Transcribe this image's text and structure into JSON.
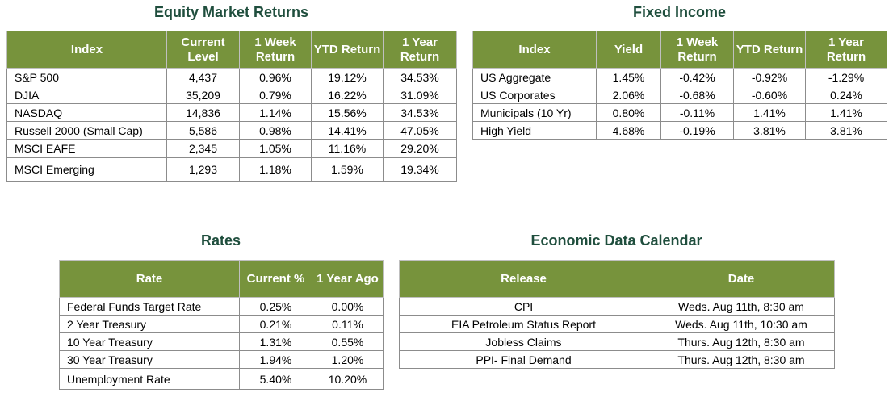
{
  "equity": {
    "title": "Equity Market Returns",
    "headers": [
      "Index",
      "Current Level",
      "1 Week Return",
      "YTD Return",
      "1 Year Return"
    ],
    "rows": [
      [
        "S&P 500",
        "4,437",
        "0.96%",
        "19.12%",
        "34.53%"
      ],
      [
        "DJIA",
        "35,209",
        "0.79%",
        "16.22%",
        "31.09%"
      ],
      [
        "NASDAQ",
        "14,836",
        "1.14%",
        "15.56%",
        "34.53%"
      ],
      [
        "Russell 2000 (Small Cap)",
        "5,586",
        "0.98%",
        "14.41%",
        "47.05%"
      ],
      [
        "MSCI EAFE",
        "2,345",
        "1.05%",
        "11.16%",
        "29.20%"
      ],
      [
        "MSCI Emerging",
        "1,293",
        "1.18%",
        "1.59%",
        "19.34%"
      ]
    ]
  },
  "fixed_income": {
    "title": "Fixed Income",
    "headers": [
      "Index",
      "Yield",
      "1 Week Return",
      "YTD Return",
      "1 Year Return"
    ],
    "rows": [
      [
        "US Aggregate",
        "1.45%",
        "-0.42%",
        "-0.92%",
        "-1.29%"
      ],
      [
        "US Corporates",
        "2.06%",
        "-0.68%",
        "-0.60%",
        "0.24%"
      ],
      [
        "Municipals (10 Yr)",
        "0.80%",
        "-0.11%",
        "1.41%",
        "1.41%"
      ],
      [
        "High Yield",
        "4.68%",
        "-0.19%",
        "3.81%",
        "3.81%"
      ]
    ]
  },
  "rates": {
    "title": "Rates",
    "headers": [
      "Rate",
      "Current %",
      "1 Year Ago"
    ],
    "rows": [
      [
        "Federal Funds Target Rate",
        "0.25%",
        "0.00%"
      ],
      [
        "2 Year Treasury",
        "0.21%",
        "0.11%"
      ],
      [
        "10 Year Treasury",
        "1.31%",
        "0.55%"
      ],
      [
        "30 Year Treasury",
        "1.94%",
        "1.20%"
      ],
      [
        "Unemployment Rate",
        "5.40%",
        "10.20%"
      ]
    ]
  },
  "calendar": {
    "title": "Economic Data Calendar",
    "headers": [
      "Release",
      "Date"
    ],
    "rows": [
      [
        "CPI",
        "Weds. Aug 11th, 8:30 am"
      ],
      [
        "EIA Petroleum Status Report",
        "Weds. Aug 11th, 10:30 am"
      ],
      [
        "Jobless Claims",
        "Thurs. Aug 12th, 8:30 am"
      ],
      [
        "PPI- Final Demand",
        "Thurs. Aug 12th, 8:30 am"
      ]
    ]
  }
}
